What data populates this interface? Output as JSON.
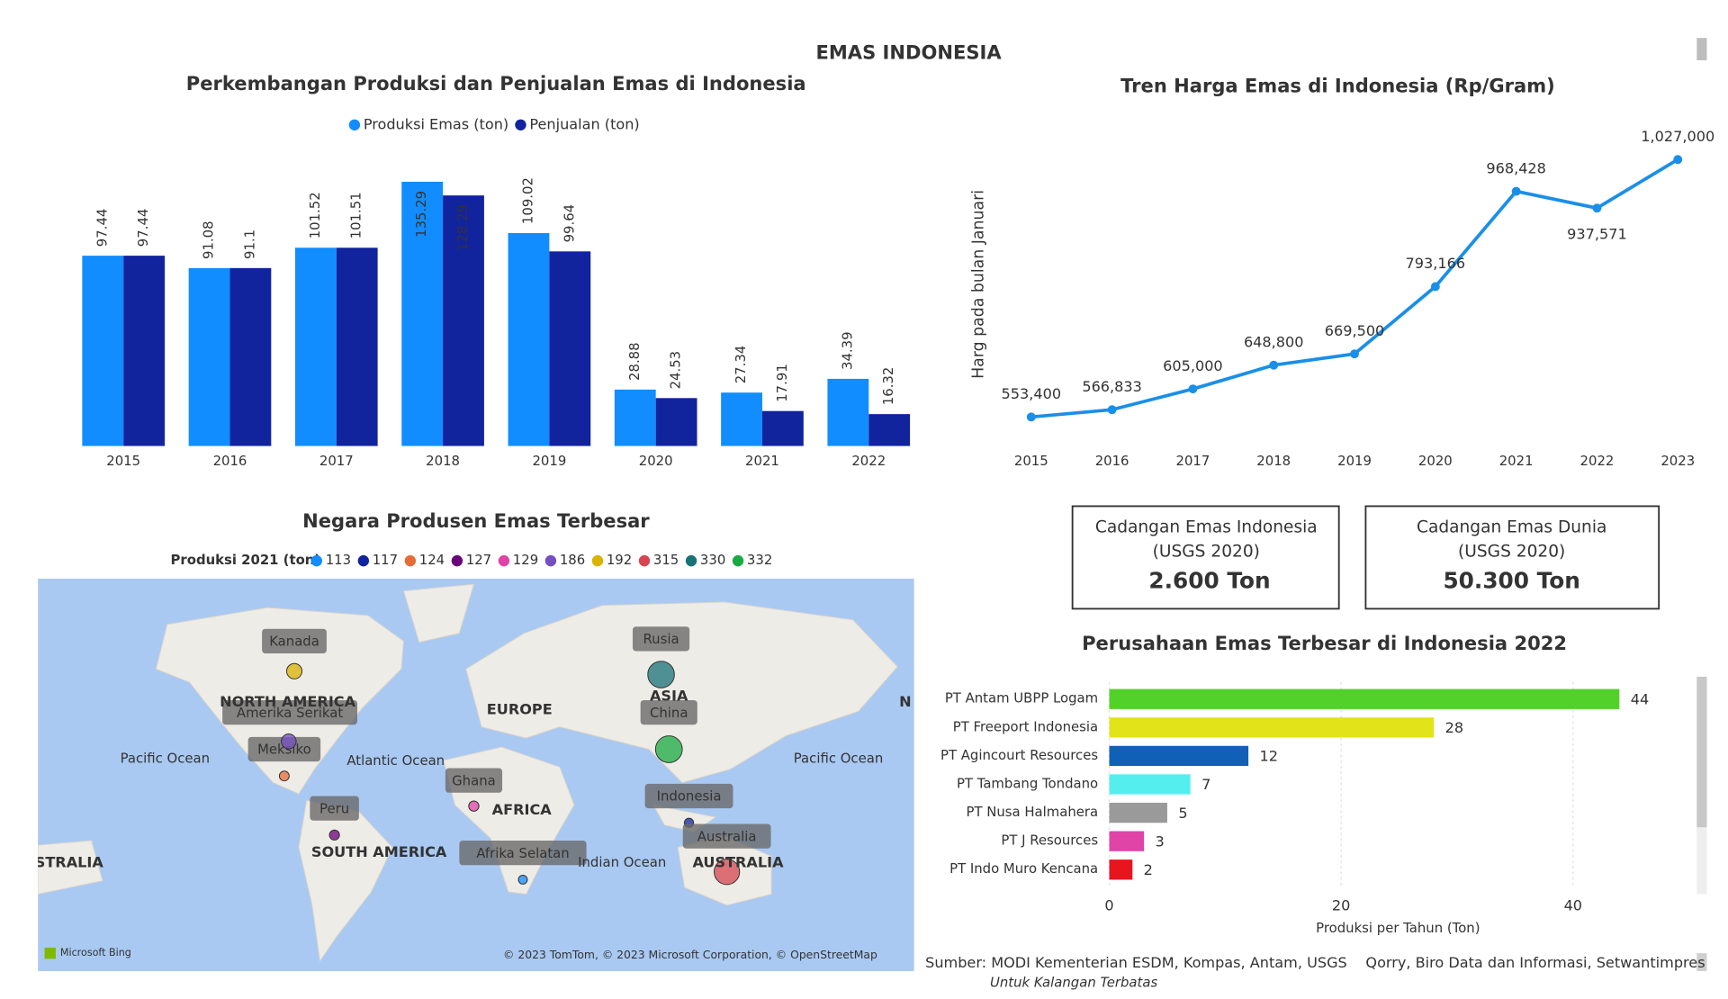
{
  "title": "EMAS INDONESIA",
  "charts": [
    {
      "type": "bar",
      "title": "Perkembangan Produksi dan Penjualan Emas di Indonesia",
      "categories": [
        "2015",
        "2016",
        "2017",
        "2018",
        "2019",
        "2020",
        "2021",
        "2022"
      ],
      "series": [
        {
          "name": "Produksi Emas (ton)",
          "color": "#118DFF",
          "values": [
            97.44,
            91.08,
            101.52,
            135.29,
            109.02,
            28.88,
            27.34,
            34.39
          ]
        },
        {
          "name": "Penjualan (ton)",
          "color": "#12239E",
          "values": [
            97.44,
            91.1,
            101.51,
            128.29,
            99.64,
            24.53,
            17.91,
            16.32
          ]
        }
      ]
    },
    {
      "type": "line",
      "title": "Tren Harga Emas di Indonesia (Rp/Gram)",
      "y_label": "Harg pada bulan Januari",
      "categories": [
        "2015",
        "2016",
        "2017",
        "2018",
        "2019",
        "2020",
        "2021",
        "2022",
        "2023"
      ],
      "values": [
        553400,
        566833,
        605000,
        648800,
        669500,
        793166,
        968428,
        937571,
        1027000
      ],
      "value_labels": [
        "553,400",
        "566,833",
        "605,000",
        "648,800",
        "669,500",
        "793,166",
        "968,428",
        "937,571",
        "1,027,000"
      ],
      "color": "#1A8FE8"
    },
    {
      "type": "hbar",
      "title": "Perusahaan Emas Terbesar di Indonesia 2022",
      "categories": [
        "PT Antam UBPP Logam",
        "PT Freeport Indonesia",
        "PT Agincourt Resources",
        "PT Tambang Tondano",
        "PT Nusa Halmahera",
        "PT J Resources",
        "PT Indo Muro Kencana"
      ],
      "values": [
        44,
        28,
        12,
        7,
        5,
        3,
        2
      ],
      "colors": [
        "#52D12A",
        "#E3E319",
        "#1060B8",
        "#55EEEE",
        "#9A9A9A",
        "#E044A7",
        "#E8141E"
      ],
      "xlim": [
        0,
        50
      ],
      "xticks": [
        0,
        20,
        40
      ],
      "x_label": "Produksi per Tahun (Ton)",
      "grid": true
    }
  ],
  "map": {
    "title": "Negara Produsen Emas Terbesar",
    "legend_title": "Produksi 2021 (ton)",
    "points": [
      {
        "name": "Afrika Selatan",
        "value": 113,
        "color": "#118DFF"
      },
      {
        "name": "Indonesia",
        "value": 117,
        "color": "#12239E"
      },
      {
        "name": "Meksiko",
        "value": 124,
        "color": "#E66C37"
      },
      {
        "name": "Peru",
        "value": 127,
        "color": "#6B007B"
      },
      {
        "name": "Ghana",
        "value": 129,
        "color": "#E044A7"
      },
      {
        "name": "Amerika Serikat",
        "value": 186,
        "color": "#744EC2"
      },
      {
        "name": "Kanada",
        "value": 192,
        "color": "#D9B300"
      },
      {
        "name": "Australia",
        "value": 315,
        "color": "#D64550"
      },
      {
        "name": "Rusia",
        "value": 330,
        "color": "#197278"
      },
      {
        "name": "China",
        "value": 332,
        "color": "#1AAB40"
      }
    ],
    "region_labels": [
      "NORTH AMERICA",
      "EUROPE",
      "ASIA",
      "AFRICA",
      "SOUTH AMERICA",
      "AUSTRALIA",
      "STRALIA",
      "N",
      "Pacific Ocean",
      "Atlantic Ocean",
      "Pacific Ocean",
      "Indian Ocean"
    ],
    "attribution_left": "Microsoft Bing",
    "attribution_right": "© 2023 TomTom, © 2023 Microsoft Corporation, © OpenStreetMap"
  },
  "cards": [
    {
      "title": "Cadangan Emas Indonesia",
      "subtitle": "(USGS 2020)",
      "value": "2.600 Ton"
    },
    {
      "title": "Cadangan Emas Dunia",
      "subtitle": "(USGS 2020)",
      "value": "50.300 Ton"
    }
  ],
  "footer": {
    "source": "Sumber: MODI Kementerian ESDM, Kompas, Antam, USGS",
    "credit": "Qorry, Biro Data dan Informasi, Setwantimpres",
    "note": "Untuk Kalangan Terbatas"
  }
}
